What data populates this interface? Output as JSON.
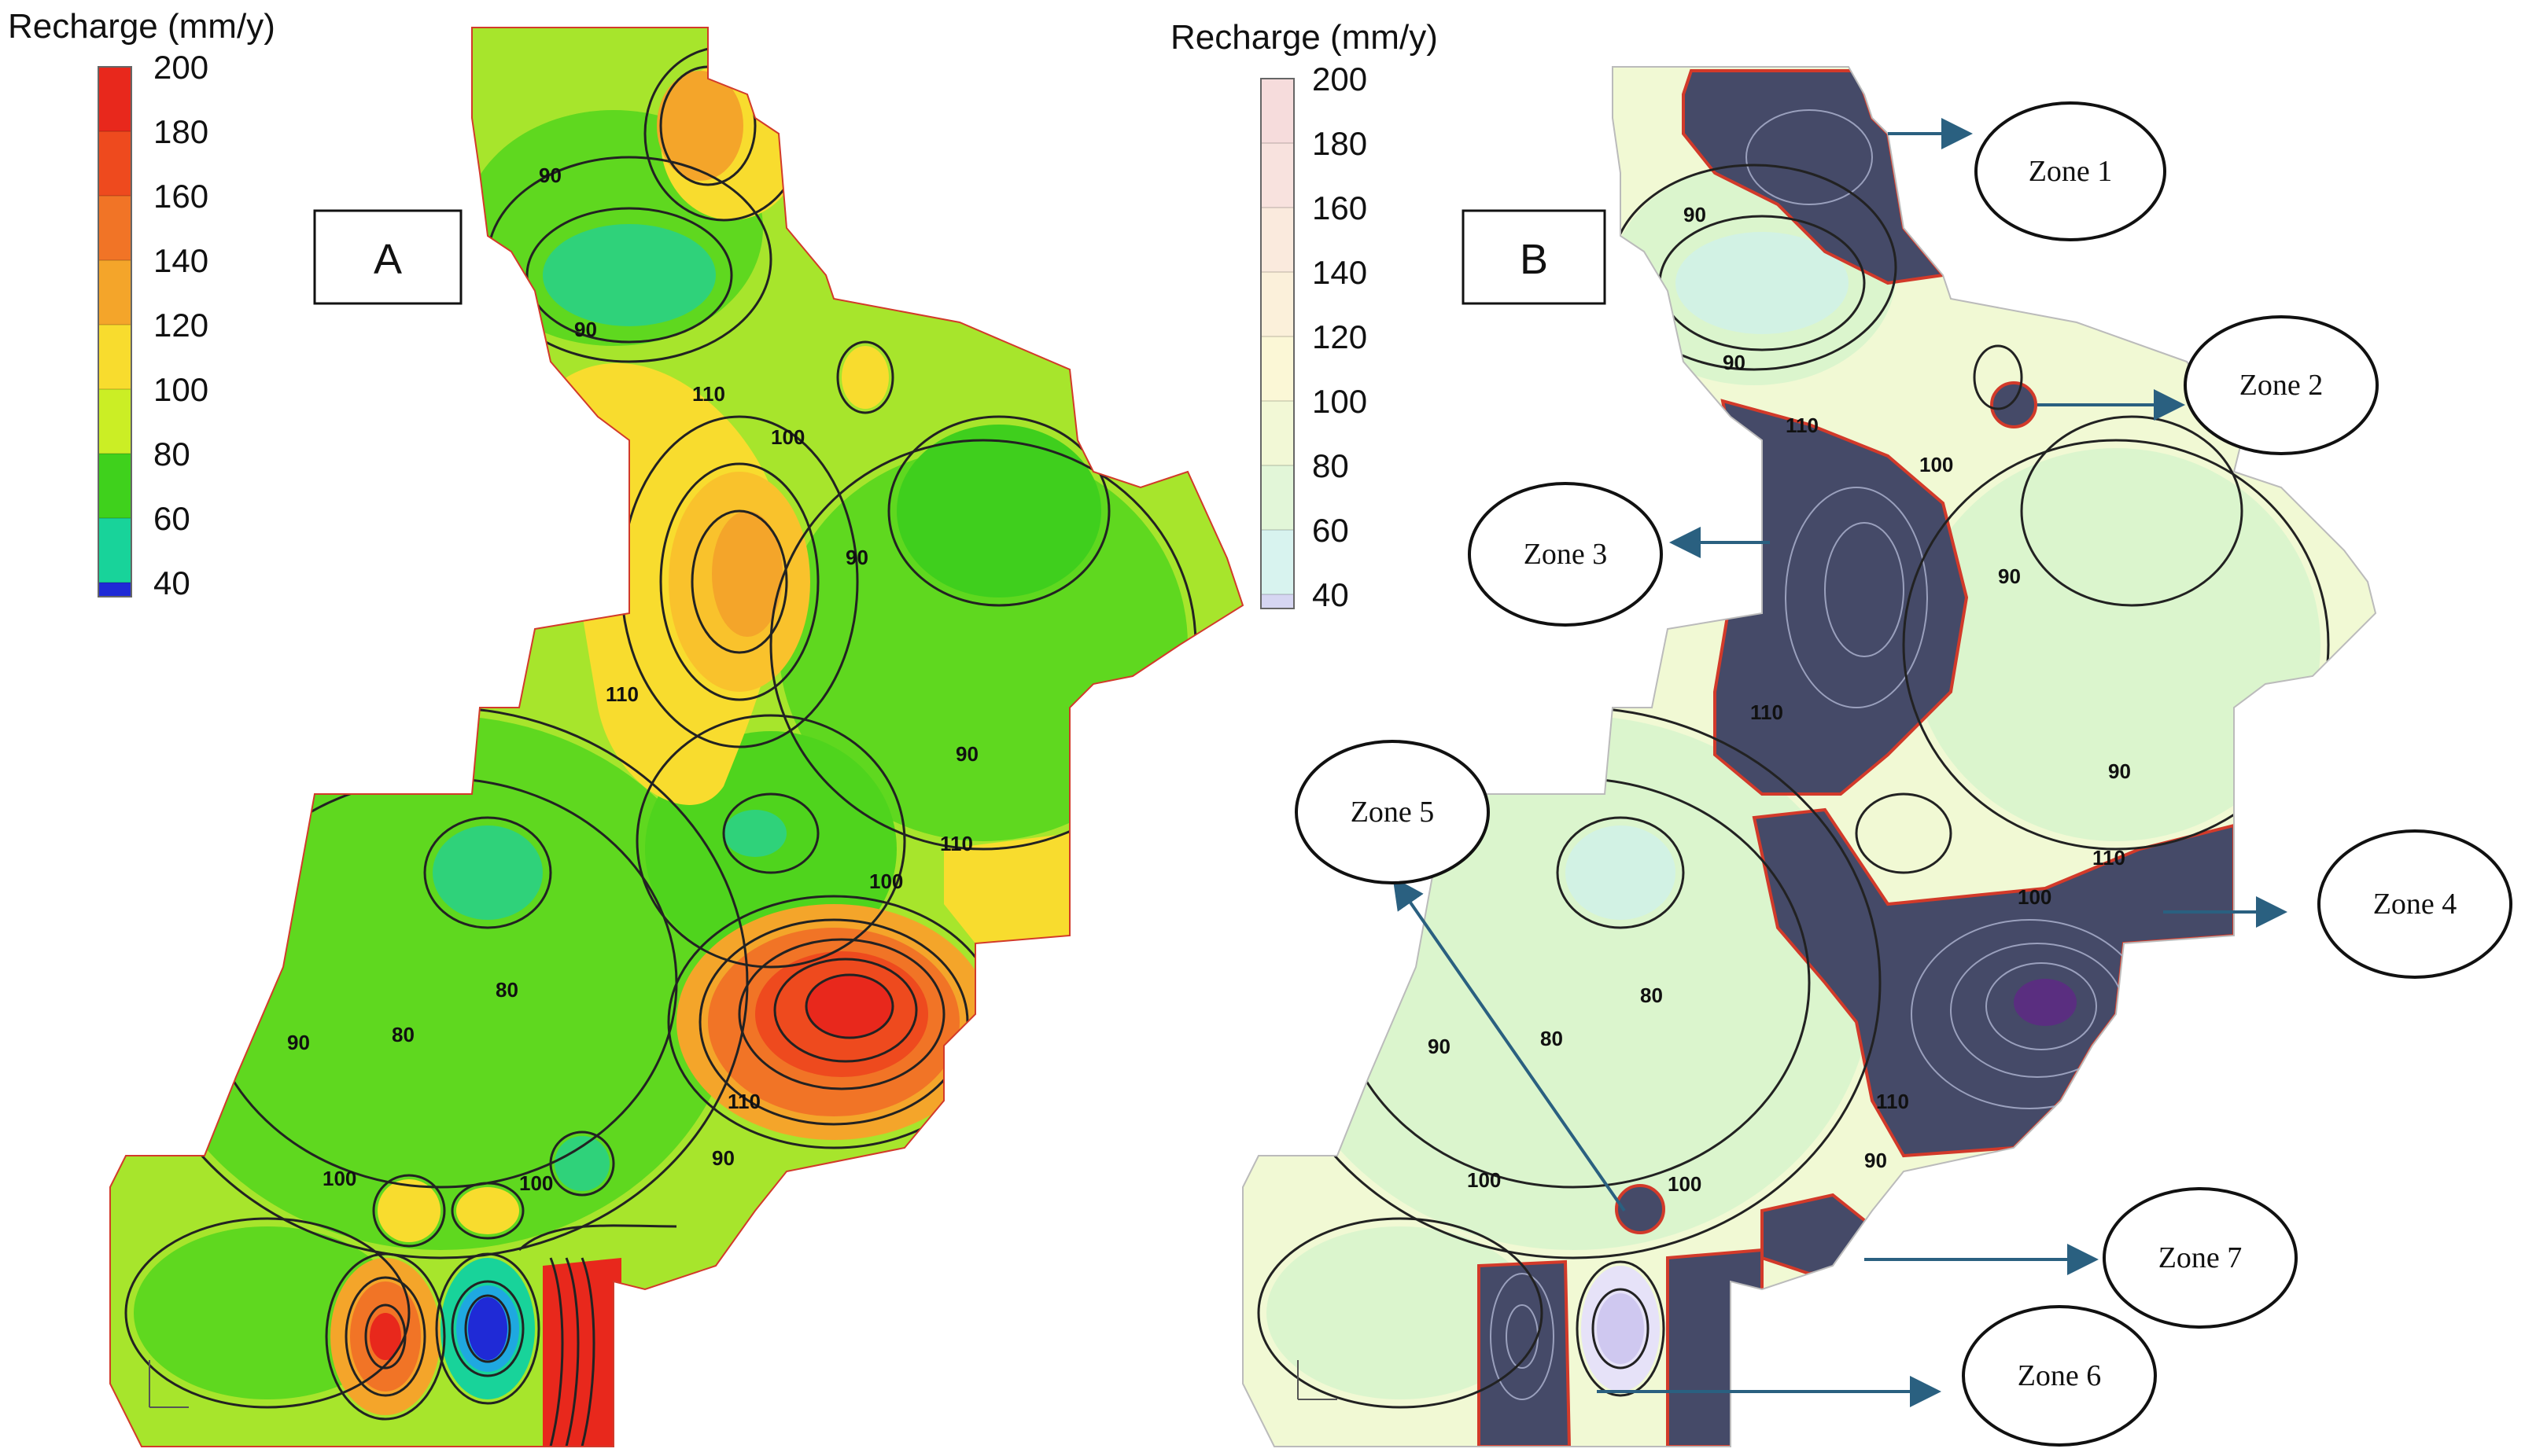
{
  "panel_a": {
    "label": "A",
    "legend": {
      "title": "Recharge (mm/y)",
      "ticks": [
        "200",
        "180",
        "160",
        "140",
        "120",
        "100",
        "80",
        "60",
        "40"
      ],
      "colors": [
        "#e8281c",
        "#ee4a1e",
        "#f17426",
        "#f4a52a",
        "#f8dc2e",
        "#cbee25",
        "#3fd11c",
        "#18d39a",
        "#1f2ad6"
      ]
    },
    "contour_labels": [
      "90",
      "90",
      "110",
      "100",
      "90",
      "110",
      "90",
      "110",
      "100",
      "80",
      "80",
      "90",
      "110",
      "90",
      "100",
      "100"
    ]
  },
  "panel_b": {
    "label": "B",
    "legend": {
      "title": "Recharge (mm/y)",
      "ticks": [
        "200",
        "180",
        "160",
        "140",
        "120",
        "100",
        "80",
        "60",
        "40"
      ],
      "colors": [
        "#f6dcdc",
        "#f8e2de",
        "#faeadd",
        "#fbf0da",
        "#fbf7d6",
        "#f2f8d6",
        "#e2f6d8",
        "#d8f3ef",
        "#d6d6f2"
      ]
    },
    "contour_labels": [
      "90",
      "90",
      "110",
      "100",
      "90",
      "110",
      "90",
      "110",
      "100",
      "80",
      "80",
      "90",
      "110",
      "90",
      "100",
      "100"
    ],
    "zones": [
      {
        "label": "Zone 1"
      },
      {
        "label": "Zone 2"
      },
      {
        "label": "Zone 3"
      },
      {
        "label": "Zone 4"
      },
      {
        "label": "Zone 5"
      },
      {
        "label": "Zone 6"
      },
      {
        "label": "Zone 7"
      }
    ]
  },
  "colors": {
    "zone_fill": "#454a68",
    "zone_border": "#d23a2a",
    "arrow": "#2a6080",
    "contour": "#222222"
  }
}
